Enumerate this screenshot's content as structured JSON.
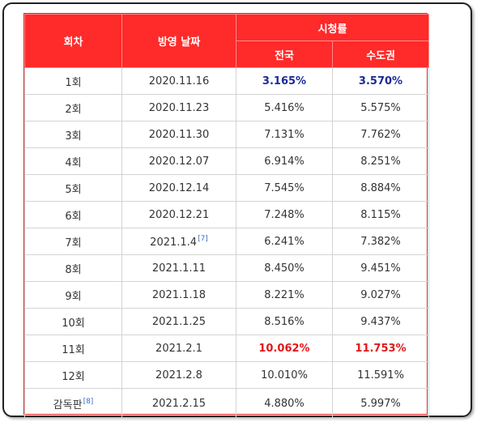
{
  "table": {
    "headers": {
      "episode": "회차",
      "air_date": "방영 날짜",
      "ratings": "시청률",
      "nationwide": "전국",
      "capital_area": "수도권"
    },
    "rows": [
      {
        "episode": "1회",
        "date": "2020.11.16",
        "note": "",
        "nationwide": "3.165%",
        "capital": "3.570%",
        "highlight": "min"
      },
      {
        "episode": "2회",
        "date": "2020.11.23",
        "note": "",
        "nationwide": "5.416%",
        "capital": "5.575%",
        "highlight": ""
      },
      {
        "episode": "3회",
        "date": "2020.11.30",
        "note": "",
        "nationwide": "7.131%",
        "capital": "7.762%",
        "highlight": ""
      },
      {
        "episode": "4회",
        "date": "2020.12.07",
        "note": "",
        "nationwide": "6.914%",
        "capital": "8.251%",
        "highlight": ""
      },
      {
        "episode": "5회",
        "date": "2020.12.14",
        "note": "",
        "nationwide": "7.545%",
        "capital": "8.884%",
        "highlight": ""
      },
      {
        "episode": "6회",
        "date": "2020.12.21",
        "note": "",
        "nationwide": "7.248%",
        "capital": "8.115%",
        "highlight": ""
      },
      {
        "episode": "7회",
        "date": "2021.1.4",
        "note": "[7]",
        "nationwide": "6.241%",
        "capital": "7.382%",
        "highlight": ""
      },
      {
        "episode": "8회",
        "date": "2021.1.11",
        "note": "",
        "nationwide": "8.450%",
        "capital": "9.451%",
        "highlight": ""
      },
      {
        "episode": "9회",
        "date": "2021.1.18",
        "note": "",
        "nationwide": "8.221%",
        "capital": "9.027%",
        "highlight": ""
      },
      {
        "episode": "10회",
        "date": "2021.1.25",
        "note": "",
        "nationwide": "8.516%",
        "capital": "9.437%",
        "highlight": ""
      },
      {
        "episode": "11회",
        "date": "2021.2.1",
        "note": "",
        "nationwide": "10.062%",
        "capital": "11.753%",
        "highlight": "max"
      },
      {
        "episode": "12회",
        "date": "2021.2.8",
        "note": "",
        "nationwide": "10.010%",
        "capital": "11.591%",
        "highlight": ""
      },
      {
        "episode": "감독판",
        "episode_note": "[8]",
        "date": "2021.2.15",
        "note": "",
        "nationwide": "4.880%",
        "capital": "5.997%",
        "highlight": ""
      }
    ]
  },
  "colors": {
    "header_bg": "#ff2a2a",
    "min_text": "#1a2a9a",
    "max_text": "#e01818",
    "footnote_link": "#3a6fc0"
  }
}
